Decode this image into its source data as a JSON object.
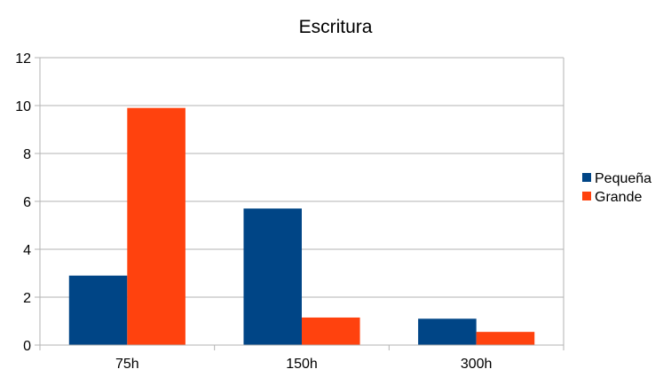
{
  "chart_data": {
    "type": "bar",
    "title": "Escritura",
    "xlabel": "",
    "ylabel": "",
    "categories": [
      "75h",
      "150h",
      "300h"
    ],
    "series": [
      {
        "name": "Pequeña",
        "color": "#004586",
        "values": [
          2.9,
          5.7,
          1.1
        ]
      },
      {
        "name": "Grande",
        "color": "#ff420e",
        "values": [
          9.9,
          1.15,
          0.55
        ]
      }
    ],
    "ylim": [
      0,
      12
    ],
    "yticks": [
      0,
      2,
      4,
      6,
      8,
      10,
      12
    ],
    "grid": true,
    "legend_position": "right"
  }
}
